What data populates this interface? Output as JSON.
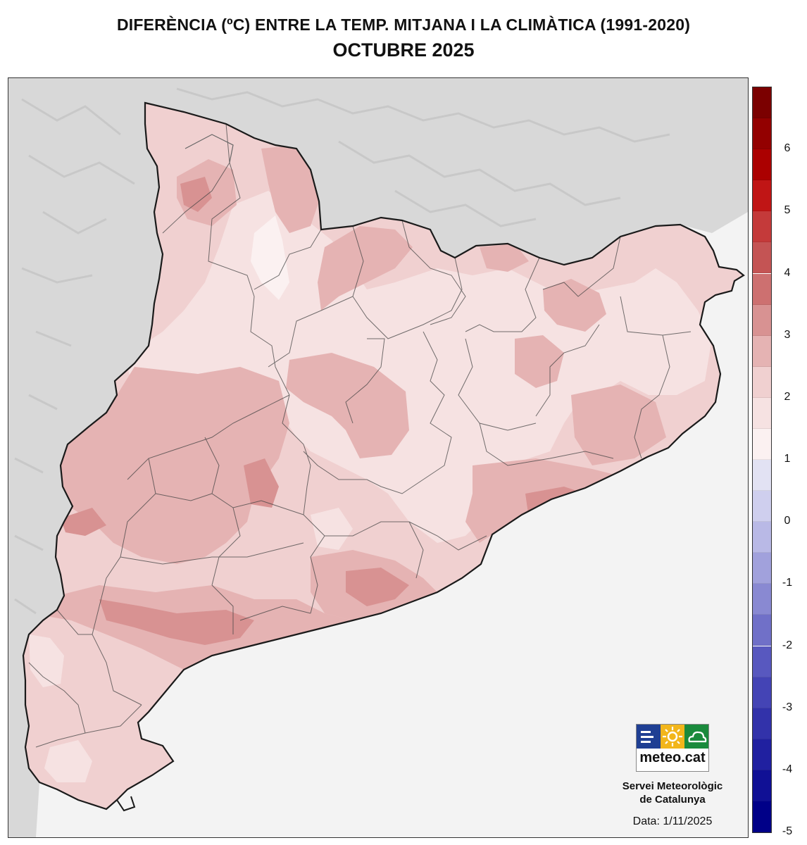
{
  "header": {
    "title": "DIFERÈNCIA (ºC) ENTRE LA TEMP. MITJANA I LA CLIMÀTICA (1991-2020)",
    "subtitle": "OCTUBRE 2025"
  },
  "legend": {
    "labels": [
      "6",
      "5",
      "4",
      "3",
      "2",
      "1",
      "0",
      "-1",
      "-2",
      "-3",
      "-4",
      "-5"
    ],
    "colors": [
      "#7b0000",
      "#930000",
      "#ab0000",
      "#c01515",
      "#c43a3a",
      "#c45454",
      "#cd7070",
      "#d89292",
      "#e5b3b3",
      "#f0d0d0",
      "#f6e2e2",
      "#fbf1f1",
      "#e2e2f3",
      "#cfcfee",
      "#b9b9e6",
      "#a1a1dc",
      "#8989d2",
      "#7070c8",
      "#5858bf",
      "#4444b5",
      "#3232aa",
      "#2020a0",
      "#101095",
      "#000088"
    ]
  },
  "logo": {
    "name": "meteo.cat",
    "colors": {
      "blue": "#1f3f93",
      "yellow": "#f2b61b",
      "green": "#1a8a3c"
    },
    "icons": [
      "bars-icon",
      "sun-icon",
      "cloud-icon"
    ]
  },
  "footer": {
    "org_line1": "Servei Meteorològic",
    "org_line2": "de Catalunya",
    "date": "Data: 1/11/2025"
  },
  "map_colors": {
    "sea": "#f3f3f3",
    "relief": "#d6d6d6",
    "base_anomaly": "#f0d0d0",
    "lighter_anomaly": "#f6e2e2",
    "lightest_anomaly": "#fbf1f1",
    "darker_anomaly": "#e5b3b3",
    "darkest_anomaly": "#d89292",
    "border": "#222222"
  }
}
